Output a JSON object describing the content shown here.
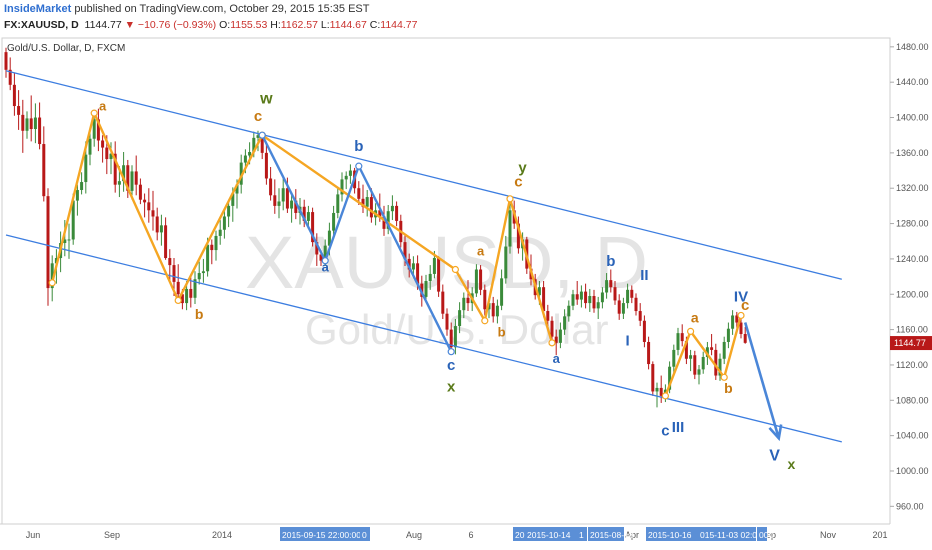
{
  "header": {
    "publisher": "InsideMarket",
    "published_text": "published on TradingView.com, October 29, 2015 15:35 EST",
    "symbol": "FX:XAUUSD, D",
    "last": "1144.77",
    "change": "▼ −10.76 (−0.93%)",
    "o_label": "O:",
    "o_value": "1155.53",
    "h_label": "H:",
    "h_value": "1162.57",
    "l_label": "L:",
    "l_value": "1144.67",
    "c_label": "C:",
    "c_value": "1144.77"
  },
  "chart_title": "Gold/U.S. Dollar, D, FXCM",
  "watermark": {
    "symbol": "XAUUSD, D",
    "name": "Gold/U.S. Dollar"
  },
  "colors": {
    "up": "#3a8a3a",
    "down": "#b81818",
    "channel": "#3c7de0",
    "orange": "#f5a623",
    "blue_wave": "#4a86d8",
    "orange_label": "#c77a12",
    "blue_label": "#2a63b8",
    "green_label": "#5a7a1a"
  },
  "chart_data": {
    "type": "candlestick",
    "y_ticks": [
      "1480.00",
      "1440.00",
      "1400.00",
      "1360.00",
      "1320.00",
      "1280.00",
      "1240.00",
      "1200.00",
      "1160.00",
      "1120.00",
      "1080.00",
      "1040.00",
      "1000.00",
      "960.00"
    ],
    "ylim": [
      940,
      1490
    ],
    "last_price": "1144.77",
    "x_ticks": [
      "Jun",
      "Sep",
      "2014",
      "Apr",
      "Aug",
      "6",
      "Apr",
      "Sep",
      "Nov",
      "201"
    ],
    "x_highlights": [
      "2015-09-15 22:00:00",
      "0",
      "20",
      "2015-10-14",
      "1",
      "2015-08-18",
      "2015-10-16",
      "015-11-03 02:00:00",
      "00"
    ],
    "channel": {
      "upper": [
        [
          0,
          1453
        ],
        [
          199,
          1217
        ]
      ],
      "lower": [
        [
          0,
          1267
        ],
        [
          199,
          1033
        ]
      ]
    },
    "orange_path": [
      [
        11,
        1213
      ],
      [
        21,
        1405
      ],
      [
        41,
        1193
      ],
      [
        61,
        1380
      ],
      [
        107,
        1228
      ],
      [
        114,
        1170
      ],
      [
        120,
        1308
      ],
      [
        130,
        1145
      ]
    ],
    "orange_path_2": [
      [
        157,
        1085
      ],
      [
        163,
        1158
      ],
      [
        171,
        1106
      ],
      [
        175,
        1176
      ]
    ],
    "blue_path": [
      [
        61,
        1380
      ],
      [
        76,
        1238
      ],
      [
        84,
        1345
      ],
      [
        106,
        1135
      ]
    ],
    "projection": [
      [
        176,
        1168
      ],
      [
        184,
        1037
      ]
    ],
    "wave_labels": [
      {
        "t": "a",
        "x": 23,
        "y": 1408,
        "c": "orange",
        "s": 13
      },
      {
        "t": "b",
        "x": 46,
        "y": 1172,
        "c": "orange",
        "s": 14
      },
      {
        "t": "c",
        "x": 60,
        "y": 1396,
        "c": "orange",
        "s": 15
      },
      {
        "t": "w",
        "x": 62,
        "y": 1416,
        "c": "green",
        "s": 16
      },
      {
        "t": "a",
        "x": 76,
        "y": 1226,
        "c": "blue",
        "s": 13
      },
      {
        "t": "b",
        "x": 84,
        "y": 1362,
        "c": "blue",
        "s": 15
      },
      {
        "t": "c",
        "x": 106,
        "y": 1114,
        "c": "blue",
        "s": 15
      },
      {
        "t": "x",
        "x": 106,
        "y": 1090,
        "c": "green",
        "s": 15
      },
      {
        "t": "a",
        "x": 113,
        "y": 1244,
        "c": "orange",
        "s": 13
      },
      {
        "t": "b",
        "x": 118,
        "y": 1152,
        "c": "orange",
        "s": 13
      },
      {
        "t": "c",
        "x": 122,
        "y": 1322,
        "c": "orange",
        "s": 15
      },
      {
        "t": "y",
        "x": 123,
        "y": 1338,
        "c": "green",
        "s": 15
      },
      {
        "t": "a",
        "x": 131,
        "y": 1122,
        "c": "blue",
        "s": 13
      },
      {
        "t": "b",
        "x": 144,
        "y": 1232,
        "c": "blue",
        "s": 15
      },
      {
        "t": "I",
        "x": 148,
        "y": 1142,
        "c": "blue",
        "s": 15
      },
      {
        "t": "II",
        "x": 152,
        "y": 1216,
        "c": "blue",
        "s": 15
      },
      {
        "t": "c",
        "x": 157,
        "y": 1040,
        "c": "blue",
        "s": 15
      },
      {
        "t": "III",
        "x": 160,
        "y": 1044,
        "c": "blue",
        "s": 15
      },
      {
        "t": "a",
        "x": 164,
        "y": 1168,
        "c": "orange",
        "s": 14
      },
      {
        "t": "b",
        "x": 172,
        "y": 1088,
        "c": "orange",
        "s": 14
      },
      {
        "t": "IV",
        "x": 175,
        "y": 1192,
        "c": "blue",
        "s": 15
      },
      {
        "t": "c",
        "x": 176,
        "y": 1182,
        "c": "orange",
        "s": 15
      },
      {
        "t": "V",
        "x": 183,
        "y": 1012,
        "c": "blue",
        "s": 16
      },
      {
        "t": "x",
        "x": 187,
        "y": 1002,
        "c": "green",
        "s": 14
      }
    ],
    "candles": [
      [
        1474,
        1479,
        1445,
        1454
      ],
      [
        1454,
        1468,
        1431,
        1437
      ],
      [
        1437,
        1451,
        1402,
        1413
      ],
      [
        1413,
        1431,
        1386,
        1403
      ],
      [
        1403,
        1420,
        1360,
        1385
      ],
      [
        1385,
        1407,
        1376,
        1399
      ],
      [
        1399,
        1425,
        1373,
        1387
      ],
      [
        1387,
        1416,
        1371,
        1400
      ],
      [
        1400,
        1417,
        1364,
        1370
      ],
      [
        1370,
        1390,
        1305,
        1311
      ],
      [
        1311,
        1320,
        1187,
        1207
      ],
      [
        1207,
        1244,
        1192,
        1235
      ],
      [
        1235,
        1251,
        1212,
        1241
      ],
      [
        1241,
        1271,
        1225,
        1258
      ],
      [
        1258,
        1284,
        1243,
        1262
      ],
      [
        1262,
        1280,
        1240,
        1262
      ],
      [
        1262,
        1314,
        1256,
        1306
      ],
      [
        1306,
        1324,
        1289,
        1318
      ],
      [
        1318,
        1338,
        1313,
        1327
      ],
      [
        1327,
        1373,
        1314,
        1358
      ],
      [
        1358,
        1388,
        1346,
        1376
      ],
      [
        1376,
        1408,
        1367,
        1398
      ],
      [
        1398,
        1410,
        1362,
        1374
      ],
      [
        1374,
        1380,
        1349,
        1366
      ],
      [
        1366,
        1380,
        1336,
        1353
      ],
      [
        1353,
        1372,
        1336,
        1359
      ],
      [
        1359,
        1373,
        1315,
        1324
      ],
      [
        1324,
        1345,
        1310,
        1328
      ],
      [
        1328,
        1361,
        1316,
        1346
      ],
      [
        1346,
        1352,
        1309,
        1317
      ],
      [
        1317,
        1346,
        1307,
        1339
      ],
      [
        1339,
        1357,
        1312,
        1324
      ],
      [
        1324,
        1331,
        1302,
        1307
      ],
      [
        1307,
        1314,
        1287,
        1304
      ],
      [
        1304,
        1320,
        1281,
        1295
      ],
      [
        1295,
        1317,
        1272,
        1288
      ],
      [
        1288,
        1298,
        1261,
        1270
      ],
      [
        1270,
        1290,
        1255,
        1278
      ],
      [
        1278,
        1287,
        1239,
        1241
      ],
      [
        1241,
        1251,
        1216,
        1233
      ],
      [
        1233,
        1241,
        1198,
        1214
      ],
      [
        1214,
        1234,
        1193,
        1200
      ],
      [
        1200,
        1206,
        1183,
        1190
      ],
      [
        1190,
        1215,
        1182,
        1206
      ],
      [
        1206,
        1219,
        1185,
        1196
      ],
      [
        1196,
        1226,
        1189,
        1217
      ],
      [
        1217,
        1237,
        1211,
        1224
      ],
      [
        1224,
        1240,
        1213,
        1226
      ],
      [
        1226,
        1264,
        1220,
        1256
      ],
      [
        1256,
        1262,
        1234,
        1250
      ],
      [
        1250,
        1272,
        1238,
        1266
      ],
      [
        1266,
        1284,
        1256,
        1273
      ],
      [
        1273,
        1296,
        1263,
        1288
      ],
      [
        1288,
        1307,
        1276,
        1300
      ],
      [
        1300,
        1321,
        1282,
        1314
      ],
      [
        1314,
        1330,
        1297,
        1324
      ],
      [
        1324,
        1358,
        1314,
        1349
      ],
      [
        1349,
        1364,
        1337,
        1357
      ],
      [
        1357,
        1372,
        1347,
        1361
      ],
      [
        1361,
        1384,
        1355,
        1377
      ],
      [
        1377,
        1385,
        1362,
        1380
      ],
      [
        1380,
        1383,
        1353,
        1360
      ],
      [
        1360,
        1369,
        1324,
        1331
      ],
      [
        1331,
        1344,
        1306,
        1312
      ],
      [
        1312,
        1330,
        1291,
        1300
      ],
      [
        1300,
        1320,
        1286,
        1305
      ],
      [
        1305,
        1331,
        1295,
        1320
      ],
      [
        1320,
        1332,
        1292,
        1297
      ],
      [
        1297,
        1315,
        1281,
        1306
      ],
      [
        1306,
        1319,
        1285,
        1292
      ],
      [
        1292,
        1309,
        1279,
        1299
      ],
      [
        1299,
        1307,
        1276,
        1283
      ],
      [
        1283,
        1300,
        1274,
        1293
      ],
      [
        1293,
        1298,
        1254,
        1259
      ],
      [
        1259,
        1269,
        1232,
        1245
      ],
      [
        1245,
        1250,
        1232,
        1238
      ],
      [
        1238,
        1262,
        1232,
        1255
      ],
      [
        1255,
        1281,
        1244,
        1272
      ],
      [
        1272,
        1300,
        1265,
        1292
      ],
      [
        1292,
        1320,
        1286,
        1313
      ],
      [
        1313,
        1338,
        1305,
        1330
      ],
      [
        1330,
        1339,
        1319,
        1334
      ],
      [
        1334,
        1347,
        1325,
        1340
      ],
      [
        1340,
        1343,
        1314,
        1320
      ],
      [
        1320,
        1328,
        1301,
        1308
      ],
      [
        1308,
        1324,
        1292,
        1299
      ],
      [
        1299,
        1318,
        1288,
        1310
      ],
      [
        1310,
        1320,
        1281,
        1287
      ],
      [
        1287,
        1303,
        1278,
        1295
      ],
      [
        1295,
        1314,
        1282,
        1288
      ],
      [
        1288,
        1300,
        1266,
        1274
      ],
      [
        1274,
        1301,
        1268,
        1294
      ],
      [
        1294,
        1312,
        1284,
        1300
      ],
      [
        1300,
        1305,
        1277,
        1283
      ],
      [
        1283,
        1290,
        1253,
        1259
      ],
      [
        1259,
        1268,
        1232,
        1240
      ],
      [
        1240,
        1246,
        1219,
        1228
      ],
      [
        1228,
        1243,
        1218,
        1235
      ],
      [
        1235,
        1244,
        1205,
        1212
      ],
      [
        1212,
        1221,
        1186,
        1197
      ],
      [
        1197,
        1222,
        1191,
        1215
      ],
      [
        1215,
        1233,
        1205,
        1223
      ],
      [
        1223,
        1249,
        1218,
        1241
      ],
      [
        1241,
        1243,
        1197,
        1203
      ],
      [
        1203,
        1211,
        1172,
        1178
      ],
      [
        1178,
        1184,
        1153,
        1160
      ],
      [
        1160,
        1168,
        1132,
        1140
      ],
      [
        1140,
        1172,
        1132,
        1164
      ],
      [
        1164,
        1191,
        1156,
        1182
      ],
      [
        1182,
        1202,
        1173,
        1196
      ],
      [
        1196,
        1216,
        1181,
        1190
      ],
      [
        1190,
        1208,
        1181,
        1201
      ],
      [
        1201,
        1234,
        1197,
        1228
      ],
      [
        1228,
        1233,
        1199,
        1205
      ],
      [
        1205,
        1211,
        1176,
        1183
      ],
      [
        1183,
        1196,
        1173,
        1190
      ],
      [
        1190,
        1197,
        1168,
        1175
      ],
      [
        1175,
        1194,
        1167,
        1187
      ],
      [
        1187,
        1228,
        1182,
        1218
      ],
      [
        1218,
        1266,
        1212,
        1254
      ],
      [
        1254,
        1303,
        1246,
        1295
      ],
      [
        1295,
        1306,
        1274,
        1280
      ],
      [
        1280,
        1288,
        1246,
        1252
      ],
      [
        1252,
        1270,
        1238,
        1262
      ],
      [
        1262,
        1265,
        1223,
        1229
      ],
      [
        1229,
        1245,
        1210,
        1217
      ],
      [
        1217,
        1223,
        1194,
        1199
      ],
      [
        1199,
        1215,
        1188,
        1208
      ],
      [
        1208,
        1215,
        1174,
        1181
      ],
      [
        1181,
        1188,
        1164,
        1170
      ],
      [
        1170,
        1175,
        1146,
        1152
      ],
      [
        1152,
        1160,
        1131,
        1145
      ],
      [
        1145,
        1168,
        1139,
        1160
      ],
      [
        1160,
        1183,
        1154,
        1175
      ],
      [
        1175,
        1193,
        1169,
        1187
      ],
      [
        1187,
        1205,
        1182,
        1200
      ],
      [
        1200,
        1215,
        1188,
        1194
      ],
      [
        1194,
        1210,
        1185,
        1203
      ],
      [
        1203,
        1212,
        1184,
        1190
      ],
      [
        1190,
        1206,
        1180,
        1198
      ],
      [
        1198,
        1205,
        1179,
        1184
      ],
      [
        1184,
        1197,
        1172,
        1191
      ],
      [
        1191,
        1208,
        1184,
        1202
      ],
      [
        1202,
        1224,
        1195,
        1216
      ],
      [
        1216,
        1228,
        1202,
        1208
      ],
      [
        1208,
        1215,
        1188,
        1193
      ],
      [
        1193,
        1200,
        1171,
        1178
      ],
      [
        1178,
        1196,
        1172,
        1190
      ],
      [
        1190,
        1212,
        1184,
        1205
      ],
      [
        1205,
        1210,
        1190,
        1196
      ],
      [
        1196,
        1201,
        1176,
        1181
      ],
      [
        1181,
        1190,
        1164,
        1170
      ],
      [
        1170,
        1176,
        1140,
        1146
      ],
      [
        1146,
        1152,
        1115,
        1121
      ],
      [
        1121,
        1124,
        1085,
        1090
      ],
      [
        1090,
        1100,
        1072,
        1094
      ],
      [
        1094,
        1108,
        1077,
        1085
      ],
      [
        1085,
        1098,
        1078,
        1092
      ],
      [
        1092,
        1124,
        1088,
        1118
      ],
      [
        1118,
        1143,
        1111,
        1137
      ],
      [
        1137,
        1162,
        1131,
        1156
      ],
      [
        1156,
        1166,
        1141,
        1147
      ],
      [
        1147,
        1152,
        1121,
        1127
      ],
      [
        1127,
        1137,
        1113,
        1131
      ],
      [
        1131,
        1136,
        1104,
        1109
      ],
      [
        1109,
        1120,
        1098,
        1115
      ],
      [
        1115,
        1135,
        1110,
        1129
      ],
      [
        1129,
        1146,
        1120,
        1140
      ],
      [
        1140,
        1155,
        1131,
        1137
      ],
      [
        1137,
        1144,
        1103,
        1108
      ],
      [
        1108,
        1133,
        1102,
        1127
      ],
      [
        1127,
        1152,
        1121,
        1146
      ],
      [
        1146,
        1168,
        1139,
        1161
      ],
      [
        1161,
        1182,
        1154,
        1176
      ],
      [
        1176,
        1180,
        1162,
        1168
      ],
      [
        1168,
        1173,
        1150,
        1155
      ],
      [
        1155,
        1163,
        1144,
        1145
      ]
    ]
  }
}
